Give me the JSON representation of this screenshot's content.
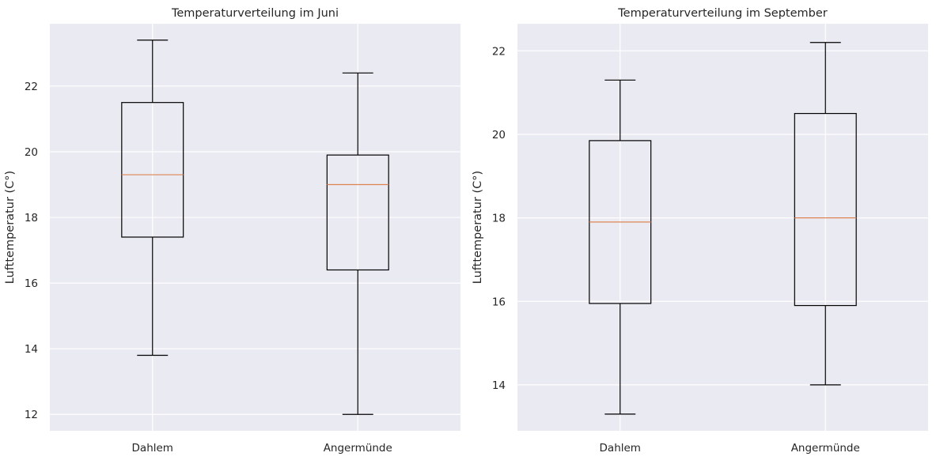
{
  "chart_data": [
    {
      "type": "box",
      "title": "Temperaturverteilung im Juni",
      "xlabel": "",
      "ylabel": "Lufttemperatur (C°)",
      "ylim": [
        11.5,
        23.9
      ],
      "yticks": [
        "12",
        "14",
        "16",
        "18",
        "20",
        "22"
      ],
      "categories": [
        "Dahlem",
        "Angermünde"
      ],
      "boxes": [
        {
          "category": "Dahlem",
          "whisker_low": 13.8,
          "q1": 17.4,
          "median": 19.3,
          "q3": 21.5,
          "whisker_high": 23.4
        },
        {
          "category": "Angermünde",
          "whisker_low": 12.0,
          "q1": 16.4,
          "median": 19.0,
          "q3": 19.9,
          "whisker_high": 22.4
        }
      ],
      "grid": true
    },
    {
      "type": "box",
      "title": "Temperaturverteilung im September",
      "xlabel": "",
      "ylabel": "Lufttemperatur (C°)",
      "ylim": [
        12.9,
        22.65
      ],
      "yticks": [
        "14",
        "16",
        "18",
        "20",
        "22"
      ],
      "categories": [
        "Dahlem",
        "Angermünde"
      ],
      "boxes": [
        {
          "category": "Dahlem",
          "whisker_low": 13.3,
          "q1": 15.95,
          "median": 17.9,
          "q3": 19.85,
          "whisker_high": 21.3
        },
        {
          "category": "Angermünde",
          "whisker_low": 14.0,
          "q1": 15.9,
          "median": 18.0,
          "q3": 20.5,
          "whisker_high": 22.2
        }
      ],
      "grid": true
    }
  ],
  "style": {
    "axes_bg": "#eaeaf2",
    "grid_color": "#ffffff",
    "box_color": "#000000",
    "median_color": "#dd8452"
  }
}
